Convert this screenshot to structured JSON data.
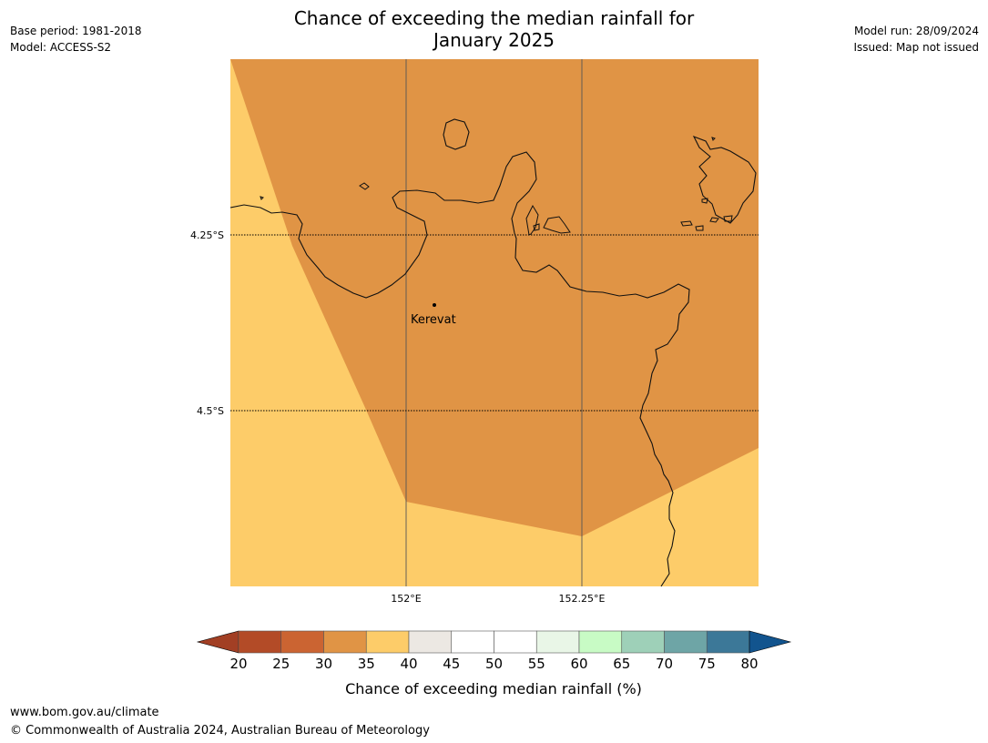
{
  "title": {
    "line1": "Chance of exceeding the median rainfall for",
    "line2": "January 2025"
  },
  "meta": {
    "base_period": "Base period: 1981-2018",
    "model": "Model: ACCESS-S2",
    "model_run": "Model run: 28/09/2024",
    "issued": "Issued: Map not issued"
  },
  "map": {
    "lat_labels": [
      "4.25°S",
      "4.5°S"
    ],
    "lon_labels": [
      "152°E",
      "152.25°E"
    ],
    "place": "Kerevat",
    "colors": {
      "band_30_35": "#e09445",
      "band_35_40": "#fdcc69"
    }
  },
  "colorbar": {
    "ticks": [
      "20",
      "25",
      "30",
      "35",
      "40",
      "45",
      "50",
      "55",
      "60",
      "65",
      "70",
      "75",
      "80"
    ],
    "colors": [
      "#a23f24",
      "#b34b27",
      "#cb6432",
      "#e09445",
      "#fdcc69",
      "#ece8e3",
      "#ffffff",
      "#ffffff",
      "#e9f6e7",
      "#c8fbc5",
      "#9ed0b8",
      "#6ea5a6",
      "#3c7898",
      "#12548e"
    ],
    "label": "Chance of exceeding median rainfall (%)"
  },
  "footer": {
    "url": "www.bom.gov.au/climate",
    "copyright": "© Commonwealth of Australia 2024, Australian Bureau of Meteorology"
  }
}
